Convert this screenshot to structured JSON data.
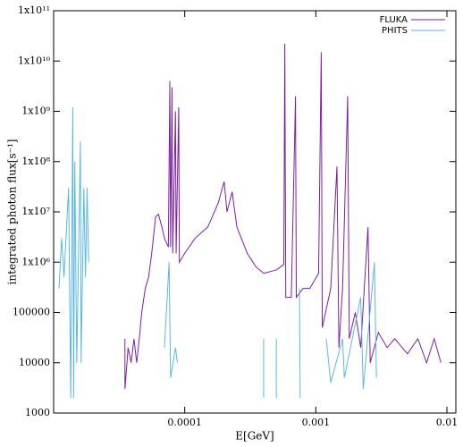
{
  "chart_data": {
    "type": "line",
    "xlabel": "E[GeV]",
    "ylabel": "integrated photon flux[s⁻¹]",
    "xscale": "log",
    "yscale": "log",
    "xlim": [
      1e-05,
      0.0117
    ],
    "ylim": [
      1000,
      100000000000
    ],
    "xticks": [
      0.0001,
      0.001,
      0.01
    ],
    "yticks": [
      1000,
      10000,
      100000,
      {
        "value": 1000000,
        "label": "1x10⁶"
      },
      {
        "value": 10000000,
        "label": "1x10⁷"
      },
      {
        "value": 100000000,
        "label": "1x10⁸"
      },
      {
        "value": 1000000000,
        "label": "1x10⁹"
      },
      {
        "value": 10000000000,
        "label": "1x10¹⁰"
      },
      {
        "value": 100000000000,
        "label": "1x10¹¹"
      }
    ],
    "legend": "upper right",
    "series": [
      {
        "name": "FLUKA",
        "color": "#7b1fa2",
        "x": [
          3.5e-05,
          3.5e-05,
          3.7e-05,
          3.9e-05,
          4.1e-05,
          4.3e-05,
          4.5e-05,
          4.7e-05,
          5e-05,
          5.3e-05,
          5.6e-05,
          6e-05,
          6.3e-05,
          6.7e-05,
          7e-05,
          7.5e-05,
          7.7e-05,
          7.8e-05,
          8e-05,
          8.1e-05,
          8.5e-05,
          8.6e-05,
          9e-05,
          9.1e-05,
          0.0001,
          0.00012,
          0.00015,
          0.00018,
          0.0002,
          0.00021,
          0.00023,
          0.00025,
          0.0003,
          0.00035,
          0.0004,
          0.0005,
          0.00057,
          0.00058,
          0.00059,
          0.00065,
          0.0007,
          0.00071,
          0.0008,
          0.0009,
          0.00105,
          0.0011,
          0.00112,
          0.0013,
          0.00145,
          0.0015,
          0.0016,
          0.00175,
          0.0018,
          0.002,
          0.0022,
          0.0025,
          0.0026,
          0.003,
          0.0035,
          0.004,
          0.005,
          0.006,
          0.007,
          0.008,
          0.009
        ],
        "values": [
          30000,
          3000,
          20000,
          10000,
          30000,
          10000,
          30000,
          100000,
          300000,
          500000,
          1500000,
          8000000,
          9000000,
          5000000,
          3000000,
          2000000,
          4000000000,
          2000000,
          3000000000,
          1500000,
          1000000000,
          1500000,
          1200000000,
          1000000,
          1500000,
          3000000,
          5000000,
          15000000,
          40000000,
          10000000,
          25000000,
          5000000,
          1500000,
          800000,
          600000,
          700000,
          900000,
          22000000000,
          200000,
          200000,
          2000000000,
          200000,
          300000,
          300000,
          600000,
          15000000000,
          50000,
          300000,
          80000000,
          20000,
          300000,
          2000000000,
          30000,
          100000,
          20000,
          5000000,
          10000,
          40000,
          20000,
          30000,
          15000,
          30000,
          10000,
          30000,
          10000
        ]
      },
      {
        "name": "PHITS",
        "color": "#5bb8e0",
        "x": [
          1.1e-05,
          1.15e-05,
          1.2e-05,
          1.3e-05,
          1.35e-05,
          1.4e-05,
          1.42e-05,
          1.45e-05,
          1.5e-05,
          1.6e-05,
          1.62e-05,
          1.7e-05,
          1.75e-05,
          1.8e-05,
          1.85e-05,
          1.85e-05,
          7e-05,
          7.6e-05,
          7.8e-05,
          8.5e-05,
          8.8e-05,
          8.8e-05,
          0.0004,
          0.0004,
          0.0004,
          0.0005,
          0.0005,
          0.0005,
          0.00075,
          0.00076,
          0.00076,
          0.0012,
          0.0013,
          0.0016,
          0.00165,
          0.0022,
          0.0023,
          0.0028,
          0.0029
        ],
        "values": [
          300000,
          3000000,
          500000,
          30000000,
          2000,
          1200000000,
          2000,
          100000000,
          10000,
          250000000,
          10000,
          30000000,
          500000,
          30000000,
          1000000,
          null,
          20000,
          1000000,
          5000,
          20000,
          10000,
          null,
          30000,
          2000,
          null,
          30000,
          2000,
          null,
          300000,
          2000,
          null,
          30000,
          4000,
          30000,
          5000,
          200000,
          3000,
          1000000,
          5000
        ]
      }
    ]
  }
}
